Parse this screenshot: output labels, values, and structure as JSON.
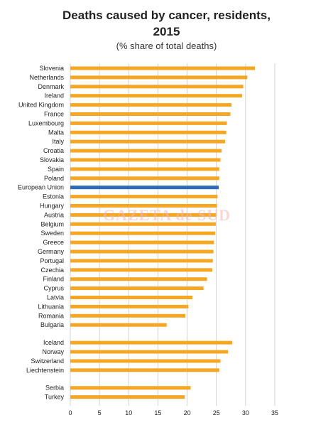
{
  "title_line1": "Deaths caused by cancer, residents,",
  "title_line2": "2015",
  "subtitle": "(% share of total deaths)",
  "watermark": "GAZETA de SUD",
  "colors": {
    "bar": "#f5a623",
    "highlight": "#2e6bb5",
    "grid": "#c8c8c8"
  },
  "chart_data": {
    "type": "bar",
    "orientation": "horizontal",
    "title": "Deaths caused by cancer, residents, 2015",
    "subtitle": "(% share of total deaths)",
    "categories": [
      "Slovenia",
      "Netherlands",
      "Denmark",
      "Ireland",
      "United Kingdom",
      "France",
      "Luxembourg",
      "Malta",
      "Italy",
      "Croatia",
      "Slovakia",
      "Spain",
      "Poland",
      "European Union",
      "Estonia",
      "Hungary",
      "Austria",
      "Belgium",
      "Sweden",
      "Greece",
      "Germany",
      "Portugal",
      "Czechia",
      "Finland",
      "Cyprus",
      "Latvia",
      "Lithuania",
      "Romania",
      "Bulgaria",
      "Iceland",
      "Norway",
      "Switzerland",
      "Liechtenstein",
      "Serbia",
      "Turkey"
    ],
    "values": [
      31.6,
      30.3,
      29.6,
      29.4,
      27.6,
      27.4,
      26.8,
      26.7,
      26.5,
      25.9,
      25.7,
      25.5,
      25.5,
      25.4,
      25.2,
      25.1,
      25.0,
      24.9,
      24.8,
      24.6,
      24.5,
      24.4,
      24.3,
      23.4,
      22.8,
      20.9,
      20.2,
      19.7,
      16.5,
      27.7,
      27.0,
      25.7,
      25.5,
      20.6,
      19.6
    ],
    "highlight": [
      "European Union"
    ],
    "groups": [
      29,
      4,
      2
    ],
    "xlim": [
      0,
      35
    ],
    "xticks": [
      0,
      5,
      10,
      15,
      20,
      25,
      30,
      35
    ],
    "grid": true,
    "xlabel": "",
    "ylabel": ""
  }
}
